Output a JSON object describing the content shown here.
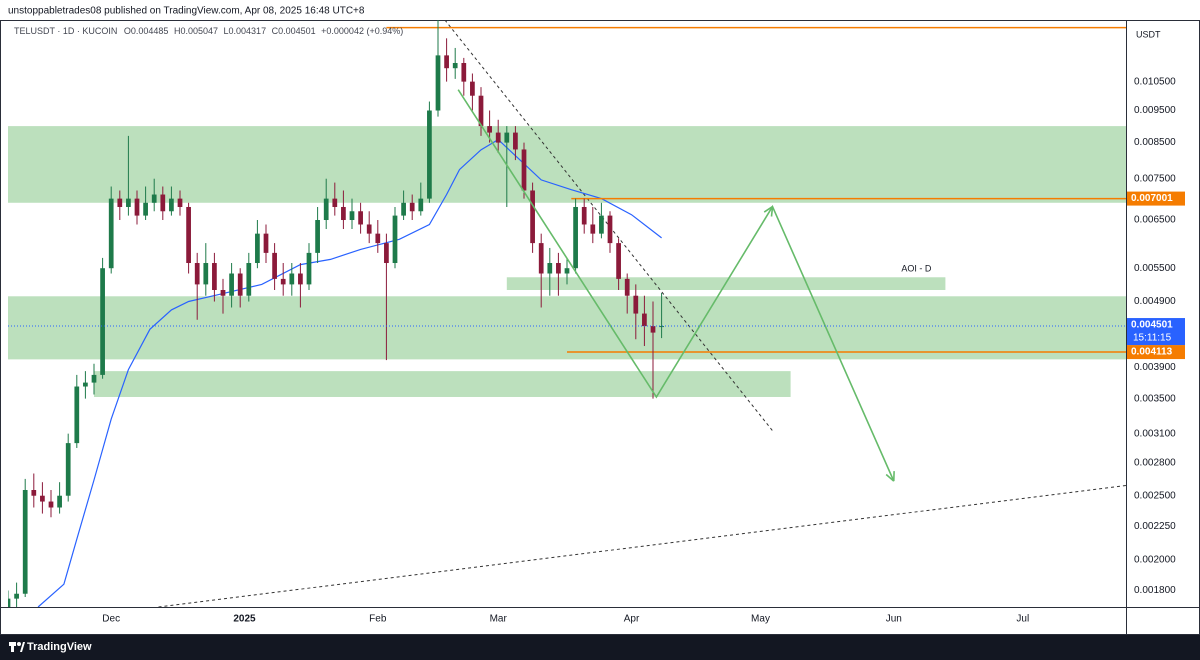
{
  "header": "unstoppabletrades08 published on TradingView.com, Apr 08, 2025 16:48 UTC+8",
  "footer": "TradingView",
  "chart_data": {
    "type": "candlestick",
    "symbol": "TELUSDT · 1D · KUCOIN",
    "ohlc_labels": [
      "O",
      "H",
      "L",
      "C"
    ],
    "change": "+0.000042 (+0.94%)",
    "currency": "USDT",
    "countdown": "15:11:15",
    "log_scale": true,
    "grid": false,
    "up_color": "#1e7a4a",
    "down_color": "#8b1a3a",
    "xlim": [
      -24,
      236
    ],
    "xticks": [
      {
        "value": 0,
        "label": "Dec"
      },
      {
        "value": 31,
        "label": "2025"
      },
      {
        "value": 62,
        "label": "Feb"
      },
      {
        "value": 90,
        "label": "Mar"
      },
      {
        "value": 121,
        "label": "Apr"
      },
      {
        "value": 151,
        "label": "May"
      },
      {
        "value": 182,
        "label": "Jun"
      },
      {
        "value": 212,
        "label": "Jul"
      }
    ],
    "ylim": [
      0.0017,
      0.013
    ],
    "yticks": [
      {
        "value": 0.0105,
        "label": "0.010500"
      },
      {
        "value": 0.0095,
        "label": "0.009500"
      },
      {
        "value": 0.0085,
        "label": "0.008500"
      },
      {
        "value": 0.0075,
        "label": "0.007500"
      },
      {
        "value": 0.0065,
        "label": "0.006500"
      },
      {
        "value": 0.0055,
        "label": "0.005500"
      },
      {
        "value": 0.0049,
        "label": "0.004900"
      },
      {
        "value": 0.0039,
        "label": "0.003900"
      },
      {
        "value": 0.0035,
        "label": "0.003500"
      },
      {
        "value": 0.0031,
        "label": "0.003100"
      },
      {
        "value": 0.0028,
        "label": "0.002800"
      },
      {
        "value": 0.0025,
        "label": "0.002500"
      },
      {
        "value": 0.00225,
        "label": "0.002250"
      },
      {
        "value": 0.002,
        "label": "0.002000"
      },
      {
        "value": 0.0018,
        "label": "0.001800"
      }
    ],
    "candles": [
      {
        "x": -24,
        "open": 0.0017,
        "high": 0.0018,
        "low": 0.00165,
        "close": 0.00175
      },
      {
        "x": -22,
        "open": 0.00175,
        "high": 0.00185,
        "low": 0.0017,
        "close": 0.00178
      },
      {
        "x": -20,
        "open": 0.00178,
        "high": 0.00265,
        "low": 0.00176,
        "close": 0.00255
      },
      {
        "x": -18,
        "open": 0.00255,
        "high": 0.0027,
        "low": 0.0024,
        "close": 0.0025
      },
      {
        "x": -16,
        "open": 0.0025,
        "high": 0.00262,
        "low": 0.00235,
        "close": 0.00245
      },
      {
        "x": -14,
        "open": 0.00245,
        "high": 0.00255,
        "low": 0.00232,
        "close": 0.0024
      },
      {
        "x": -12,
        "open": 0.0024,
        "high": 0.00262,
        "low": 0.00235,
        "close": 0.0025
      },
      {
        "x": -10,
        "open": 0.0025,
        "high": 0.0031,
        "low": 0.00245,
        "close": 0.003
      },
      {
        "x": -8,
        "open": 0.003,
        "high": 0.0038,
        "low": 0.00295,
        "close": 0.00365
      },
      {
        "x": -6,
        "open": 0.00365,
        "high": 0.00385,
        "low": 0.0035,
        "close": 0.0037
      },
      {
        "x": -4,
        "open": 0.0037,
        "high": 0.00395,
        "low": 0.00355,
        "close": 0.0038
      },
      {
        "x": -2,
        "open": 0.0038,
        "high": 0.0057,
        "low": 0.00375,
        "close": 0.0055
      },
      {
        "x": 0,
        "open": 0.0055,
        "high": 0.0073,
        "low": 0.0054,
        "close": 0.007
      },
      {
        "x": 2,
        "open": 0.007,
        "high": 0.0072,
        "low": 0.0065,
        "close": 0.0068
      },
      {
        "x": 4,
        "open": 0.0068,
        "high": 0.0087,
        "low": 0.0066,
        "close": 0.007
      },
      {
        "x": 6,
        "open": 0.007,
        "high": 0.0072,
        "low": 0.0064,
        "close": 0.0066
      },
      {
        "x": 8,
        "open": 0.0066,
        "high": 0.0073,
        "low": 0.0065,
        "close": 0.0069
      },
      {
        "x": 10,
        "open": 0.0069,
        "high": 0.0075,
        "low": 0.0067,
        "close": 0.0071
      },
      {
        "x": 12,
        "open": 0.0071,
        "high": 0.0073,
        "low": 0.0065,
        "close": 0.0067
      },
      {
        "x": 14,
        "open": 0.0067,
        "high": 0.0073,
        "low": 0.0066,
        "close": 0.007
      },
      {
        "x": 16,
        "open": 0.007,
        "high": 0.0072,
        "low": 0.0066,
        "close": 0.0068
      },
      {
        "x": 18,
        "open": 0.0068,
        "high": 0.0069,
        "low": 0.0054,
        "close": 0.0056
      },
      {
        "x": 20,
        "open": 0.0056,
        "high": 0.0058,
        "low": 0.0046,
        "close": 0.0052
      },
      {
        "x": 22,
        "open": 0.0052,
        "high": 0.006,
        "low": 0.005,
        "close": 0.0056
      },
      {
        "x": 24,
        "open": 0.0056,
        "high": 0.0058,
        "low": 0.0049,
        "close": 0.0051
      },
      {
        "x": 26,
        "open": 0.0051,
        "high": 0.0053,
        "low": 0.0047,
        "close": 0.005
      },
      {
        "x": 28,
        "open": 0.005,
        "high": 0.0056,
        "low": 0.0048,
        "close": 0.0054
      },
      {
        "x": 30,
        "open": 0.0054,
        "high": 0.0055,
        "low": 0.0048,
        "close": 0.005
      },
      {
        "x": 32,
        "open": 0.005,
        "high": 0.0058,
        "low": 0.0049,
        "close": 0.0056
      },
      {
        "x": 34,
        "open": 0.0056,
        "high": 0.0065,
        "low": 0.0055,
        "close": 0.0062
      },
      {
        "x": 36,
        "open": 0.0062,
        "high": 0.0064,
        "low": 0.0056,
        "close": 0.0058
      },
      {
        "x": 38,
        "open": 0.0058,
        "high": 0.006,
        "low": 0.0051,
        "close": 0.0053
      },
      {
        "x": 40,
        "open": 0.0053,
        "high": 0.0056,
        "low": 0.005,
        "close": 0.0052
      },
      {
        "x": 42,
        "open": 0.0052,
        "high": 0.0056,
        "low": 0.005,
        "close": 0.0054
      },
      {
        "x": 44,
        "open": 0.0054,
        "high": 0.0056,
        "low": 0.0048,
        "close": 0.0052
      },
      {
        "x": 46,
        "open": 0.0052,
        "high": 0.006,
        "low": 0.0051,
        "close": 0.0058
      },
      {
        "x": 48,
        "open": 0.0058,
        "high": 0.0068,
        "low": 0.0056,
        "close": 0.0065
      },
      {
        "x": 50,
        "open": 0.0065,
        "high": 0.0075,
        "low": 0.0063,
        "close": 0.007
      },
      {
        "x": 52,
        "open": 0.007,
        "high": 0.0074,
        "low": 0.0066,
        "close": 0.0068
      },
      {
        "x": 54,
        "open": 0.0068,
        "high": 0.0072,
        "low": 0.0063,
        "close": 0.0065
      },
      {
        "x": 56,
        "open": 0.0065,
        "high": 0.007,
        "low": 0.0063,
        "close": 0.0067
      },
      {
        "x": 58,
        "open": 0.0067,
        "high": 0.0069,
        "low": 0.0062,
        "close": 0.0064
      },
      {
        "x": 60,
        "open": 0.0064,
        "high": 0.0067,
        "low": 0.006,
        "close": 0.0062
      },
      {
        "x": 62,
        "open": 0.0062,
        "high": 0.0065,
        "low": 0.0058,
        "close": 0.006
      },
      {
        "x": 64,
        "open": 0.006,
        "high": 0.0062,
        "low": 0.004,
        "close": 0.0056
      },
      {
        "x": 66,
        "open": 0.0056,
        "high": 0.0068,
        "low": 0.0055,
        "close": 0.0066
      },
      {
        "x": 68,
        "open": 0.0066,
        "high": 0.0072,
        "low": 0.0065,
        "close": 0.0069
      },
      {
        "x": 70,
        "open": 0.0069,
        "high": 0.0071,
        "low": 0.0065,
        "close": 0.0067
      },
      {
        "x": 72,
        "open": 0.0067,
        "high": 0.0074,
        "low": 0.0066,
        "close": 0.007
      },
      {
        "x": 74,
        "open": 0.007,
        "high": 0.0098,
        "low": 0.0069,
        "close": 0.0095
      },
      {
        "x": 76,
        "open": 0.0095,
        "high": 0.013,
        "low": 0.0093,
        "close": 0.0115
      },
      {
        "x": 78,
        "open": 0.0115,
        "high": 0.0122,
        "low": 0.0105,
        "close": 0.011
      },
      {
        "x": 80,
        "open": 0.011,
        "high": 0.0118,
        "low": 0.0106,
        "close": 0.0112
      },
      {
        "x": 82,
        "open": 0.0112,
        "high": 0.0114,
        "low": 0.01,
        "close": 0.0105
      },
      {
        "x": 84,
        "open": 0.0105,
        "high": 0.0108,
        "low": 0.0095,
        "close": 0.01
      },
      {
        "x": 86,
        "open": 0.01,
        "high": 0.0103,
        "low": 0.0087,
        "close": 0.009
      },
      {
        "x": 88,
        "open": 0.009,
        "high": 0.0095,
        "low": 0.0085,
        "close": 0.0088
      },
      {
        "x": 90,
        "open": 0.0088,
        "high": 0.0092,
        "low": 0.0082,
        "close": 0.0085
      },
      {
        "x": 92,
        "open": 0.0085,
        "high": 0.009,
        "low": 0.0068,
        "close": 0.0088
      },
      {
        "x": 94,
        "open": 0.0088,
        "high": 0.009,
        "low": 0.008,
        "close": 0.0083
      },
      {
        "x": 96,
        "open": 0.0083,
        "high": 0.0085,
        "low": 0.007,
        "close": 0.0072
      },
      {
        "x": 98,
        "open": 0.0072,
        "high": 0.0074,
        "low": 0.0058,
        "close": 0.006
      },
      {
        "x": 100,
        "open": 0.006,
        "high": 0.0062,
        "low": 0.0048,
        "close": 0.0054
      },
      {
        "x": 102,
        "open": 0.0054,
        "high": 0.0059,
        "low": 0.005,
        "close": 0.0056
      },
      {
        "x": 104,
        "open": 0.0056,
        "high": 0.0058,
        "low": 0.005,
        "close": 0.0054
      },
      {
        "x": 106,
        "open": 0.0054,
        "high": 0.0057,
        "low": 0.0052,
        "close": 0.0055
      },
      {
        "x": 108,
        "open": 0.0055,
        "high": 0.007,
        "low": 0.0054,
        "close": 0.0068
      },
      {
        "x": 110,
        "open": 0.0068,
        "high": 0.007,
        "low": 0.0062,
        "close": 0.0064
      },
      {
        "x": 112,
        "open": 0.0064,
        "high": 0.0068,
        "low": 0.006,
        "close": 0.0062
      },
      {
        "x": 114,
        "open": 0.0062,
        "high": 0.0069,
        "low": 0.0061,
        "close": 0.0066
      },
      {
        "x": 116,
        "open": 0.0066,
        "high": 0.0067,
        "low": 0.0058,
        "close": 0.006
      },
      {
        "x": 118,
        "open": 0.006,
        "high": 0.0061,
        "low": 0.0051,
        "close": 0.0053
      },
      {
        "x": 120,
        "open": 0.0053,
        "high": 0.0054,
        "low": 0.0047,
        "close": 0.005
      },
      {
        "x": 122,
        "open": 0.005,
        "high": 0.0052,
        "low": 0.0043,
        "close": 0.0047
      },
      {
        "x": 124,
        "open": 0.0047,
        "high": 0.005,
        "low": 0.0042,
        "close": 0.0045
      },
      {
        "x": 126,
        "open": 0.0045,
        "high": 0.0049,
        "low": 0.0035,
        "close": 0.0044
      },
      {
        "x": 128,
        "open": 0.004485,
        "high": 0.005047,
        "low": 0.004317,
        "close": 0.004501
      }
    ],
    "ma": {
      "color": "#2962ff",
      "x": [
        -17,
        -11,
        -8,
        -4,
        0,
        4,
        9,
        14,
        18,
        25,
        35,
        44,
        51,
        58,
        67,
        74,
        78,
        81,
        86,
        90,
        95,
        100,
        107,
        114,
        121,
        128
      ],
      "values": [
        0.0017,
        0.00184,
        0.00215,
        0.00264,
        0.00326,
        0.00387,
        0.00445,
        0.00476,
        0.0049,
        0.00502,
        0.0052,
        0.00557,
        0.00567,
        0.00587,
        0.00608,
        0.0064,
        0.0071,
        0.00774,
        0.00829,
        0.00859,
        0.00801,
        0.00747,
        0.00722,
        0.007,
        0.00662,
        0.00611
      ]
    },
    "zones": [
      {
        "from": -24,
        "to": 236,
        "top": 0.009,
        "bottom": 0.0069
      },
      {
        "from": -24,
        "to": 236,
        "top": 0.00499,
        "bottom": 0.00401
      },
      {
        "from": -4,
        "to": 158,
        "top": 0.00385,
        "bottom": 0.00352
      },
      {
        "from": 92,
        "to": 194,
        "top": 0.00533,
        "bottom": 0.0051,
        "label": "AOI - D"
      }
    ],
    "level_color": "#f57c00",
    "levels": [
      {
        "from": 64,
        "value": 0.01266,
        "axis_label": false
      },
      {
        "from": 107,
        "value": 0.007001,
        "axis_label": true
      },
      {
        "from": 106,
        "value": 0.004113,
        "axis_label": true
      }
    ],
    "trendlines": [
      {
        "x": [
          77.6,
          154
        ],
        "values": [
          0.013,
          0.00312
        ]
      },
      {
        "x": [
          11,
          236
        ],
        "values": [
          0.0017,
          0.00259
        ]
      }
    ],
    "projection": {
      "color": "#66bb6a",
      "x": [
        80.7,
        126.8,
        153.8,
        182
      ],
      "values": [
        0.01021,
        0.00352,
        0.00681,
        0.00263
      ]
    }
  }
}
